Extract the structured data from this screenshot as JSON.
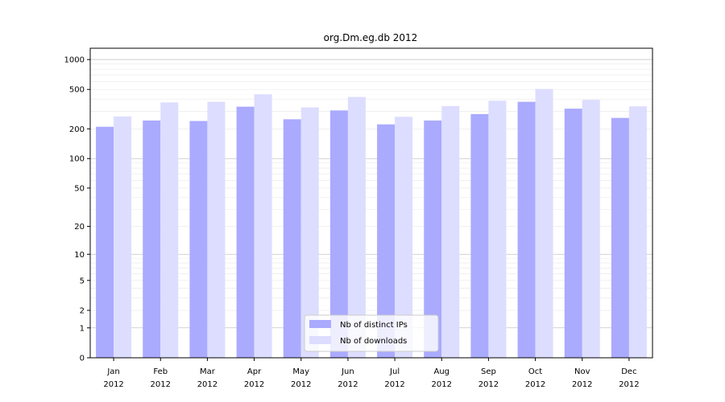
{
  "chart_data": {
    "type": "bar",
    "title": "org.Dm.eg.db 2012",
    "xlabel": "",
    "ylabel": "",
    "y_scale": "symlog",
    "ylim": [
      0,
      1300
    ],
    "y_ticks": [
      0,
      1,
      2,
      5,
      10,
      20,
      50,
      100,
      200,
      500,
      1000
    ],
    "y_tick_labels": [
      "0",
      "1",
      "2",
      "5",
      "10",
      "20",
      "50",
      "100",
      "200",
      "500",
      "1000"
    ],
    "grid": true,
    "legend_position": "bottom-center",
    "categories": [
      "Jan\n2012",
      "Feb\n2012",
      "Mar\n2012",
      "Apr\n2012",
      "May\n2012",
      "Jun\n2012",
      "Jul\n2012",
      "Aug\n2012",
      "Sep\n2012",
      "Oct\n2012",
      "Nov\n2012",
      "Dec\n2012"
    ],
    "series": [
      {
        "name": "Nb of distinct IPs",
        "color": "#aaaaff",
        "values": [
          210,
          243,
          240,
          335,
          250,
          307,
          222,
          243,
          282,
          375,
          320,
          258
        ]
      },
      {
        "name": "Nb of downloads",
        "color": "#ddddff",
        "values": [
          267,
          370,
          375,
          447,
          330,
          420,
          265,
          340,
          385,
          505,
          393,
          338
        ]
      }
    ]
  }
}
